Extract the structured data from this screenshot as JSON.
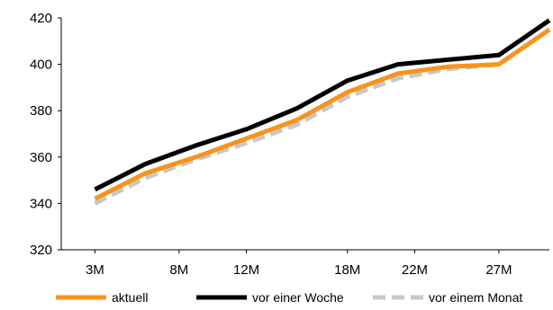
{
  "chart_data": {
    "type": "line",
    "title": "",
    "xlabel": "",
    "ylabel": "",
    "x": [
      3,
      6,
      9,
      12,
      15,
      18,
      21,
      24,
      27,
      30
    ],
    "x_tick_values": [
      3,
      8,
      12,
      18,
      22,
      27
    ],
    "x_tick_labels": [
      "3M",
      "8M",
      "12M",
      "18M",
      "22M",
      "27M"
    ],
    "xlim": [
      1,
      30
    ],
    "ylim": [
      320,
      420
    ],
    "y_ticks": [
      320,
      340,
      360,
      380,
      400,
      420
    ],
    "grid": false,
    "legend_position": "bottom",
    "series": [
      {
        "name": "vor einem Monat",
        "color": "#c8c8c8",
        "style": "dashed",
        "values": [
          340,
          351,
          359,
          366,
          374,
          386,
          394,
          398,
          400,
          415
        ]
      },
      {
        "name": "aktuell",
        "color": "#f7941d",
        "style": "solid",
        "values": [
          342,
          353,
          360,
          368,
          376,
          388,
          396,
          399,
          400,
          415
        ]
      },
      {
        "name": "vor einer Woche",
        "color": "#000000",
        "style": "solid",
        "values": [
          346,
          357,
          365,
          372,
          381,
          393,
          400,
          402,
          404,
          419
        ]
      }
    ],
    "legend": [
      {
        "name": "aktuell",
        "color": "#f7941d",
        "style": "solid"
      },
      {
        "name": "vor einer Woche",
        "color": "#000000",
        "style": "solid"
      },
      {
        "name": "vor einem Monat",
        "color": "#c8c8c8",
        "style": "dashed"
      }
    ]
  }
}
